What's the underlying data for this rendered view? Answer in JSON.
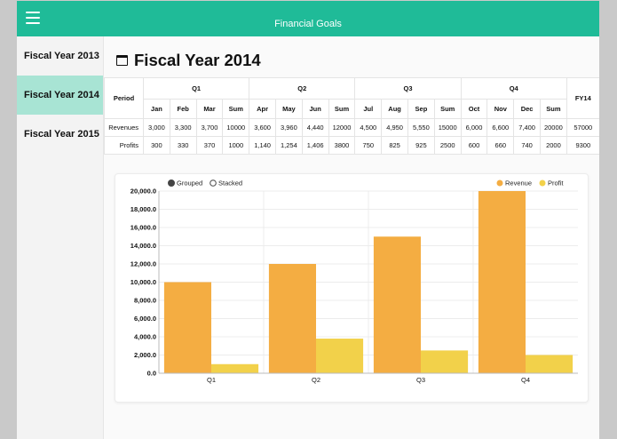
{
  "app": {
    "title": "Financial Goals"
  },
  "sidebar": {
    "items": [
      {
        "label": "Fiscal Year 2013"
      },
      {
        "label": "Fiscal Year 2014"
      },
      {
        "label": "Fiscal Year 2015"
      }
    ],
    "active_index": 1
  },
  "page": {
    "title": "Fiscal Year 2014"
  },
  "table": {
    "period_label": "Period",
    "total_label": "FY14",
    "quarters": [
      {
        "label": "Q1",
        "months": [
          "Jan",
          "Feb",
          "Mar",
          "Sum"
        ]
      },
      {
        "label": "Q2",
        "months": [
          "Apr",
          "May",
          "Jun",
          "Sum"
        ]
      },
      {
        "label": "Q3",
        "months": [
          "Jul",
          "Aug",
          "Sep",
          "Sum"
        ]
      },
      {
        "label": "Q4",
        "months": [
          "Oct",
          "Nov",
          "Dec",
          "Sum"
        ]
      }
    ],
    "rows": [
      {
        "label": "Revenues",
        "values": [
          "3,000",
          "3,300",
          "3,700",
          "10000",
          "3,600",
          "3,960",
          "4,440",
          "12000",
          "4,500",
          "4,950",
          "5,550",
          "15000",
          "6,000",
          "6,600",
          "7,400",
          "20000",
          "57000"
        ]
      },
      {
        "label": "Profits",
        "values": [
          "300",
          "330",
          "370",
          "1000",
          "1,140",
          "1,254",
          "1,406",
          "3800",
          "750",
          "825",
          "925",
          "2500",
          "600",
          "660",
          "740",
          "2000",
          "9300"
        ]
      }
    ]
  },
  "chart_controls": [
    {
      "label": "Grouped",
      "selected": true
    },
    {
      "label": "Stacked",
      "selected": false
    }
  ],
  "colors": {
    "header": "#1fbb98",
    "sidebar_active": "#a8e4d4",
    "revenue": "#f4ad42",
    "profit": "#f2d14a"
  },
  "chart_data": {
    "type": "bar",
    "categories": [
      "Q1",
      "Q2",
      "Q3",
      "Q4"
    ],
    "series": [
      {
        "name": "Revenue",
        "values": [
          10000,
          12000,
          15000,
          20000
        ]
      },
      {
        "name": "Profit",
        "values": [
          1000,
          3800,
          2500,
          2000
        ]
      }
    ],
    "ylim": [
      0,
      20000
    ],
    "yticks": [
      "20,000.0",
      "18,000.0",
      "16,000.0",
      "14,000.0",
      "12,000.0",
      "10,000.0",
      "8,000.0",
      "6,000.0",
      "4,000.0",
      "2,000.0",
      "0.0"
    ],
    "legend_position": "top-right",
    "grid": true
  }
}
